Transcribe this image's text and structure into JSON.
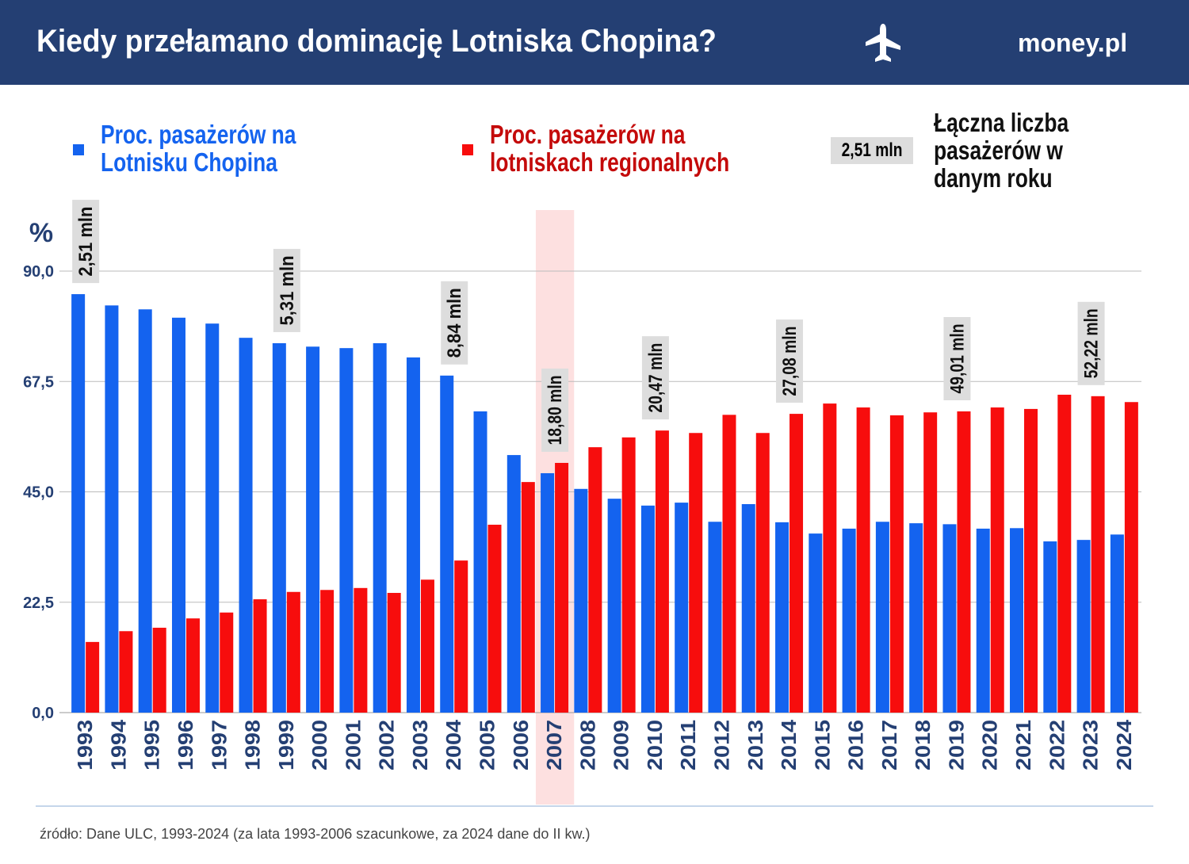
{
  "header": {
    "title": "Kiedy przełamano dominację Lotniska Chopina?",
    "logo": "money.pl"
  },
  "chart_data": {
    "type": "bar",
    "y_label": "%",
    "categories": [
      "1993",
      "1994",
      "1995",
      "1996",
      "1997",
      "1998",
      "1999",
      "2000",
      "2001",
      "2002",
      "2003",
      "2004",
      "2005",
      "2006",
      "2007",
      "2008",
      "2009",
      "2010",
      "2011",
      "2012",
      "2013",
      "2014",
      "2015",
      "2016",
      "2017",
      "2018",
      "2019",
      "2020",
      "2021",
      "2022",
      "2023",
      "2024"
    ],
    "series": [
      {
        "name": "Proc. pasażerów na Lotnisku Chopina",
        "color": "#1463ef",
        "values": [
          85.3,
          83.0,
          82.2,
          80.5,
          79.3,
          76.4,
          75.3,
          74.6,
          74.3,
          75.3,
          72.4,
          68.7,
          61.4,
          52.5,
          48.8,
          45.6,
          43.6,
          42.2,
          42.8,
          38.9,
          42.5,
          38.8,
          36.5,
          37.5,
          38.9,
          38.6,
          38.4,
          37.5,
          37.6,
          34.9,
          35.2,
          36.3
        ]
      },
      {
        "name": "Proc. pasażerów na lotniskach regionalnych",
        "color": "#f70d0d",
        "values": [
          14.4,
          16.6,
          17.3,
          19.2,
          20.4,
          23.1,
          24.6,
          25.0,
          25.4,
          24.4,
          27.1,
          31.0,
          38.3,
          47.0,
          50.9,
          54.1,
          56.1,
          57.5,
          57.0,
          60.7,
          57.0,
          60.9,
          63.0,
          62.2,
          60.6,
          61.2,
          61.4,
          62.2,
          61.9,
          64.8,
          64.5,
          63.3
        ]
      }
    ],
    "totals_labels": [
      "2,51 mln",
      null,
      null,
      null,
      null,
      null,
      "5,31 mln",
      null,
      null,
      null,
      null,
      "8,84 mln",
      null,
      null,
      "18,80 mln",
      null,
      null,
      "20,47 mln",
      null,
      null,
      null,
      "27,08 mln",
      null,
      null,
      null,
      null,
      "49,01 mln",
      null,
      null,
      null,
      "52,22 mln",
      null
    ],
    "totals_legend": {
      "sample": "2,51 mln",
      "text": "Łączna liczba pasażerów w danym roku"
    },
    "highlight": 14,
    "ylim": [
      0,
      90
    ],
    "yticks": [
      {
        "value": 0,
        "label": "0,0"
      },
      {
        "value": 22.5,
        "label": "22,5"
      },
      {
        "value": 45,
        "label": "45,0"
      },
      {
        "value": 67.5,
        "label": "67,5"
      },
      {
        "value": 90,
        "label": "90,0"
      }
    ],
    "grid": true
  },
  "source": "źródło: Dane ULC, 1993-2024 (za lata 1993-2006 szacunkowe, za 2024 dane do II kw.)"
}
